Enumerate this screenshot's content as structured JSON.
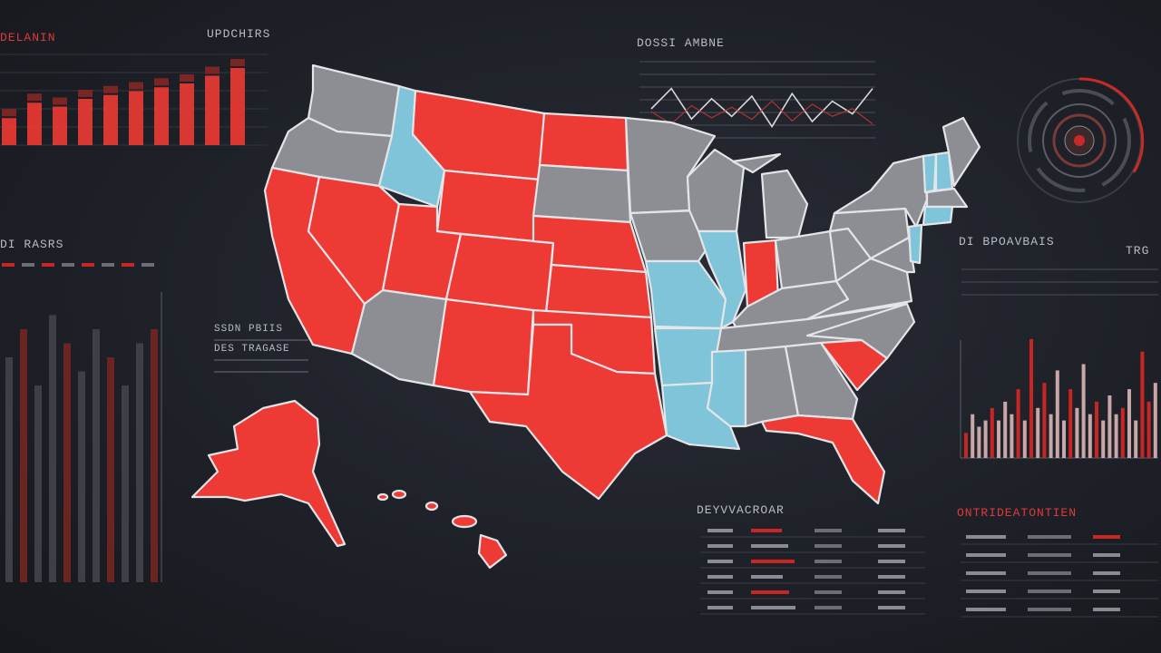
{
  "palette": {
    "background": "#1e2128",
    "red": "#ee3a34",
    "red_dark": "#c72624",
    "grey": "#8d8e93",
    "blue": "#7fc4d8",
    "line": "#d7d8dc"
  },
  "labels": {
    "top_left_red": "DELANIN",
    "top_left_grey": "UPDCHIRS",
    "mid_left": "DI RASRS",
    "center_left_title": "SSDN PBIIS",
    "center_left_sub": "DES TRAGASE",
    "top_center": "DOSSI AMBNE",
    "right_title": "DI BPOAVBAIS",
    "right_short": "TRG",
    "bottom_center": "DEYVVACROAR",
    "bottom_right_red": "ONTRIDEATONTIEN"
  },
  "top_left_bars": {
    "values": [
      0.35,
      0.55,
      0.5,
      0.6,
      0.65,
      0.7,
      0.75,
      0.8,
      0.9,
      1.0
    ]
  },
  "top_center_line": {
    "values": [
      0.5,
      0.9,
      0.3,
      0.7,
      0.35,
      0.75,
      0.15,
      0.8,
      0.25,
      0.65,
      0.4,
      0.9
    ]
  },
  "right_bars": {
    "values": [
      0.2,
      0.35,
      0.25,
      0.3,
      0.4,
      0.3,
      0.45,
      0.35,
      0.55,
      0.3,
      0.95,
      0.4,
      0.6,
      0.35,
      0.7,
      0.3,
      0.55,
      0.4,
      0.75,
      0.35,
      0.45,
      0.3,
      0.5,
      0.35,
      0.4,
      0.55,
      0.3,
      0.85,
      0.45,
      0.6
    ]
  },
  "left_columns": {
    "values": [
      0.8,
      0.9,
      0.7,
      0.95,
      0.85,
      0.75,
      0.9,
      0.8,
      0.7,
      0.85,
      0.9
    ]
  },
  "map_states": [
    {
      "id": "wa",
      "fill": "grey"
    },
    {
      "id": "or",
      "fill": "grey"
    },
    {
      "id": "ca",
      "fill": "red"
    },
    {
      "id": "id",
      "fill": "blue"
    },
    {
      "id": "nv",
      "fill": "red"
    },
    {
      "id": "mt",
      "fill": "red"
    },
    {
      "id": "wy",
      "fill": "red"
    },
    {
      "id": "ut",
      "fill": "red"
    },
    {
      "id": "az",
      "fill": "grey"
    },
    {
      "id": "co",
      "fill": "red"
    },
    {
      "id": "nm",
      "fill": "red"
    },
    {
      "id": "nd",
      "fill": "red"
    },
    {
      "id": "sd",
      "fill": "grey"
    },
    {
      "id": "ne",
      "fill": "red"
    },
    {
      "id": "ks",
      "fill": "red"
    },
    {
      "id": "ok",
      "fill": "red"
    },
    {
      "id": "tx",
      "fill": "red"
    },
    {
      "id": "mn",
      "fill": "grey"
    },
    {
      "id": "ia",
      "fill": "grey"
    },
    {
      "id": "mo",
      "fill": "blue"
    },
    {
      "id": "ar",
      "fill": "blue"
    },
    {
      "id": "la",
      "fill": "blue"
    },
    {
      "id": "wi",
      "fill": "grey"
    },
    {
      "id": "il",
      "fill": "blue"
    },
    {
      "id": "mi",
      "fill": "grey"
    },
    {
      "id": "in",
      "fill": "red"
    },
    {
      "id": "oh",
      "fill": "grey"
    },
    {
      "id": "ky",
      "fill": "grey"
    },
    {
      "id": "tn",
      "fill": "grey"
    },
    {
      "id": "ms",
      "fill": "blue"
    },
    {
      "id": "al",
      "fill": "grey"
    },
    {
      "id": "ga",
      "fill": "grey"
    },
    {
      "id": "fl",
      "fill": "red"
    },
    {
      "id": "sc",
      "fill": "red"
    },
    {
      "id": "nc",
      "fill": "grey"
    },
    {
      "id": "va",
      "fill": "grey"
    },
    {
      "id": "wv",
      "fill": "grey"
    },
    {
      "id": "pa",
      "fill": "grey"
    },
    {
      "id": "ny",
      "fill": "grey"
    },
    {
      "id": "vt",
      "fill": "blue"
    },
    {
      "id": "nh",
      "fill": "blue"
    },
    {
      "id": "me",
      "fill": "grey"
    },
    {
      "id": "ma",
      "fill": "grey"
    },
    {
      "id": "ct",
      "fill": "blue"
    },
    {
      "id": "nj",
      "fill": "blue"
    },
    {
      "id": "md",
      "fill": "grey"
    },
    {
      "id": "ak",
      "fill": "red"
    },
    {
      "id": "hi",
      "fill": "red"
    }
  ]
}
